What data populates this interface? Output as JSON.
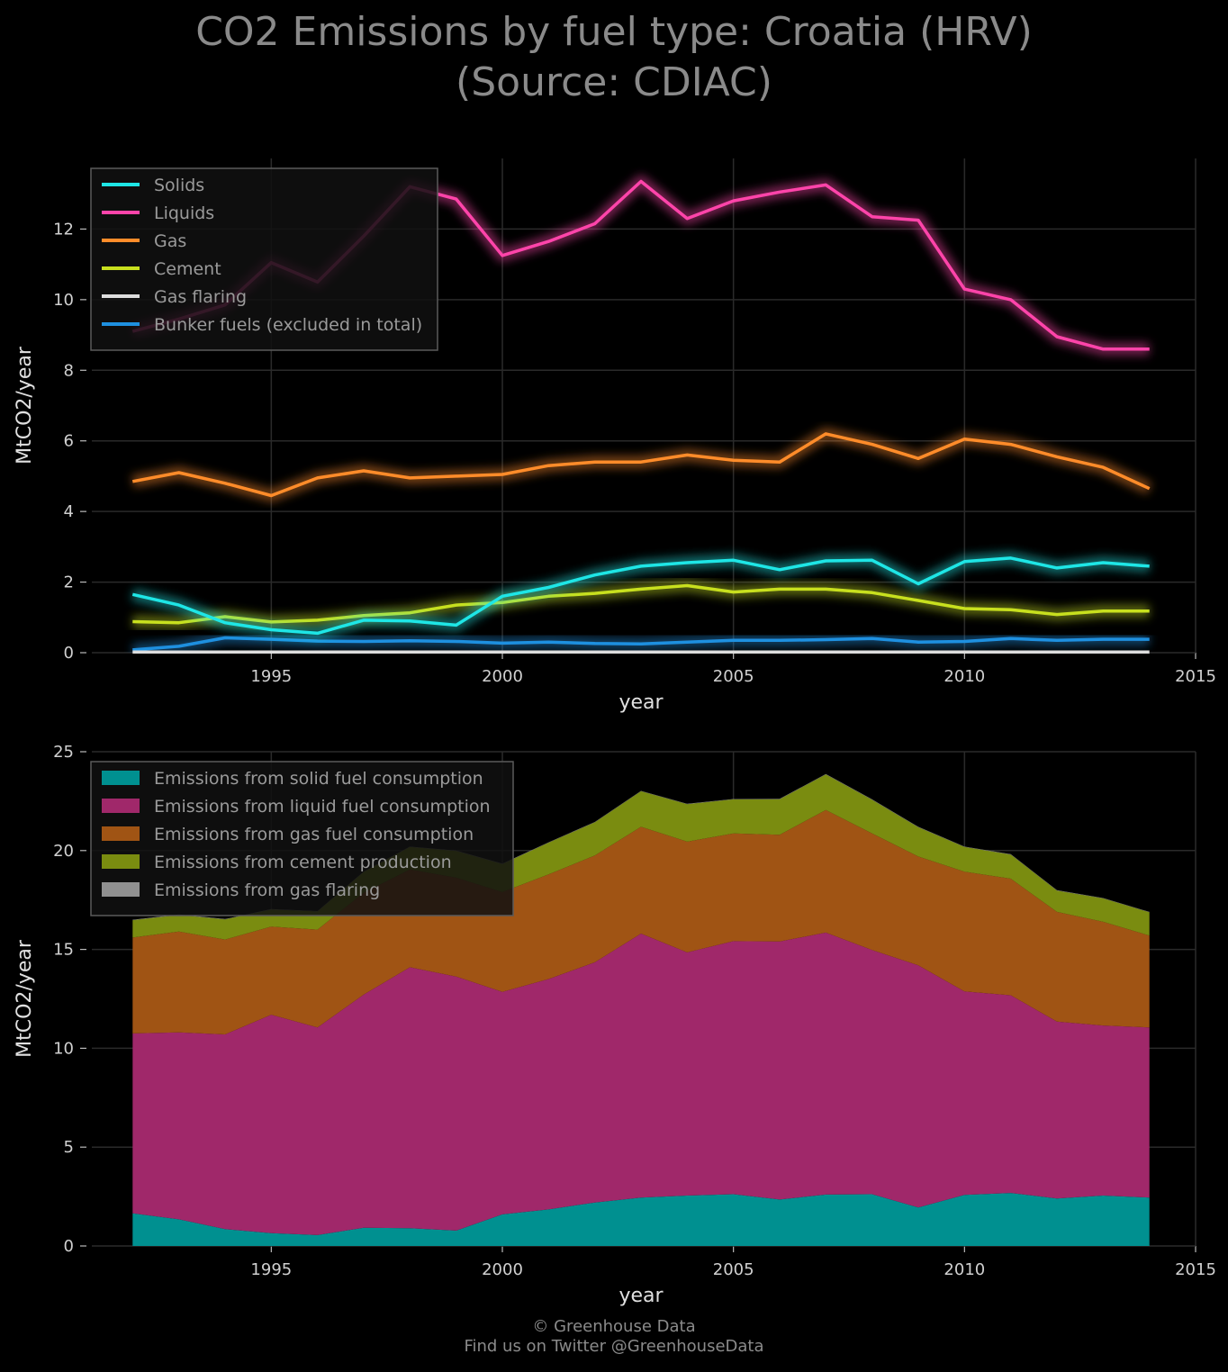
{
  "title_line1": "CO2 Emissions by fuel type: Croatia (HRV)",
  "title_line2": "(Source: CDIAC)",
  "footer_line1": "© Greenhouse Data",
  "footer_line2": "Find us on Twitter @GreenhouseData",
  "chart_data": [
    {
      "type": "line",
      "xlabel": "year",
      "ylabel": "MtCO2/year",
      "xlim": [
        1991,
        2015
      ],
      "ylim": [
        0,
        14
      ],
      "xticks": [
        1995,
        2000,
        2005,
        2010,
        2015
      ],
      "yticks": [
        0,
        2,
        4,
        6,
        8,
        10,
        12
      ],
      "grid": true,
      "legend_position": "top-left",
      "x": [
        1992,
        1993,
        1994,
        1995,
        1996,
        1997,
        1998,
        1999,
        2000,
        2001,
        2002,
        2003,
        2004,
        2005,
        2006,
        2007,
        2008,
        2009,
        2010,
        2011,
        2012,
        2013,
        2014
      ],
      "series": [
        {
          "name": "Solids",
          "color": "#1ee6e6",
          "values": [
            1.65,
            1.35,
            0.85,
            0.65,
            0.55,
            0.92,
            0.9,
            0.78,
            1.6,
            1.85,
            2.2,
            2.45,
            2.55,
            2.62,
            2.35,
            2.6,
            2.62,
            1.95,
            2.58,
            2.68,
            2.4,
            2.55,
            2.45
          ]
        },
        {
          "name": "Liquids",
          "color": "#ff44aa",
          "values": [
            9.1,
            9.45,
            9.85,
            11.05,
            10.5,
            11.8,
            13.2,
            12.85,
            11.25,
            11.65,
            12.15,
            13.35,
            12.3,
            12.8,
            13.05,
            13.25,
            12.35,
            12.25,
            10.3,
            10.0,
            8.95,
            8.6,
            8.6
          ]
        },
        {
          "name": "Gas",
          "color": "#ff8c2a",
          "values": [
            4.85,
            5.1,
            4.8,
            4.45,
            4.95,
            5.15,
            4.95,
            5.0,
            5.05,
            5.3,
            5.4,
            5.4,
            5.6,
            5.45,
            5.4,
            6.2,
            5.9,
            5.5,
            6.05,
            5.9,
            5.55,
            5.25,
            4.65
          ]
        },
        {
          "name": "Cement",
          "color": "#c8e01e",
          "values": [
            0.88,
            0.85,
            1.02,
            0.87,
            0.92,
            1.05,
            1.13,
            1.35,
            1.42,
            1.6,
            1.68,
            1.8,
            1.9,
            1.72,
            1.8,
            1.8,
            1.7,
            1.48,
            1.25,
            1.22,
            1.08,
            1.18,
            1.18
          ]
        },
        {
          "name": "Gas flaring",
          "color": "#dddddd",
          "values": [
            0.02,
            0.02,
            0.02,
            0.02,
            0.02,
            0.02,
            0.02,
            0.02,
            0.02,
            0.02,
            0.02,
            0.02,
            0.02,
            0.02,
            0.02,
            0.02,
            0.02,
            0.02,
            0.02,
            0.02,
            0.02,
            0.02,
            0.02
          ]
        },
        {
          "name": "Bunker fuels (excluded in total)",
          "color": "#1e90e0",
          "values": [
            0.08,
            0.18,
            0.42,
            0.38,
            0.33,
            0.32,
            0.34,
            0.32,
            0.27,
            0.3,
            0.26,
            0.25,
            0.3,
            0.35,
            0.35,
            0.37,
            0.4,
            0.3,
            0.32,
            0.4,
            0.35,
            0.38,
            0.38
          ]
        }
      ]
    },
    {
      "type": "area",
      "stacked": true,
      "xlabel": "year",
      "ylabel": "MtCO2/year",
      "xlim": [
        1991,
        2015
      ],
      "ylim": [
        0,
        25
      ],
      "xticks": [
        1995,
        2000,
        2005,
        2010,
        2015
      ],
      "yticks": [
        0,
        5,
        10,
        15,
        20,
        25
      ],
      "grid": true,
      "legend_position": "top-left",
      "x": [
        1992,
        1993,
        1994,
        1995,
        1996,
        1997,
        1998,
        1999,
        2000,
        2001,
        2002,
        2003,
        2004,
        2005,
        2006,
        2007,
        2008,
        2009,
        2010,
        2011,
        2012,
        2013,
        2014
      ],
      "series": [
        {
          "name": "Emissions from solid fuel consumption",
          "color": "#009090",
          "values": [
            1.65,
            1.35,
            0.85,
            0.65,
            0.55,
            0.92,
            0.9,
            0.78,
            1.6,
            1.85,
            2.2,
            2.45,
            2.55,
            2.62,
            2.35,
            2.6,
            2.62,
            1.95,
            2.58,
            2.68,
            2.4,
            2.55,
            2.45
          ]
        },
        {
          "name": "Emissions from liquid fuel consumption",
          "color": "#a0286a",
          "values": [
            9.1,
            9.45,
            9.85,
            11.05,
            10.5,
            11.8,
            13.2,
            12.85,
            11.25,
            11.65,
            12.15,
            13.35,
            12.3,
            12.8,
            13.05,
            13.25,
            12.35,
            12.25,
            10.3,
            10.0,
            8.95,
            8.6,
            8.6
          ]
        },
        {
          "name": "Emissions from gas fuel consumption",
          "color": "#a05414",
          "values": [
            4.85,
            5.1,
            4.8,
            4.45,
            4.95,
            5.15,
            4.95,
            5.0,
            5.05,
            5.3,
            5.4,
            5.4,
            5.6,
            5.45,
            5.4,
            6.2,
            5.9,
            5.5,
            6.05,
            5.9,
            5.55,
            5.25,
            4.65
          ]
        },
        {
          "name": "Emissions from cement production",
          "color": "#7a8c10",
          "values": [
            0.88,
            0.85,
            1.02,
            0.87,
            0.92,
            1.05,
            1.13,
            1.35,
            1.42,
            1.6,
            1.68,
            1.8,
            1.9,
            1.72,
            1.8,
            1.8,
            1.7,
            1.48,
            1.25,
            1.22,
            1.08,
            1.18,
            1.18
          ]
        },
        {
          "name": "Emissions from gas flaring",
          "color": "#909090",
          "values": [
            0.02,
            0.02,
            0.02,
            0.02,
            0.02,
            0.02,
            0.02,
            0.02,
            0.02,
            0.02,
            0.02,
            0.02,
            0.02,
            0.02,
            0.02,
            0.02,
            0.02,
            0.02,
            0.02,
            0.02,
            0.02,
            0.02,
            0.02
          ]
        }
      ]
    }
  ]
}
